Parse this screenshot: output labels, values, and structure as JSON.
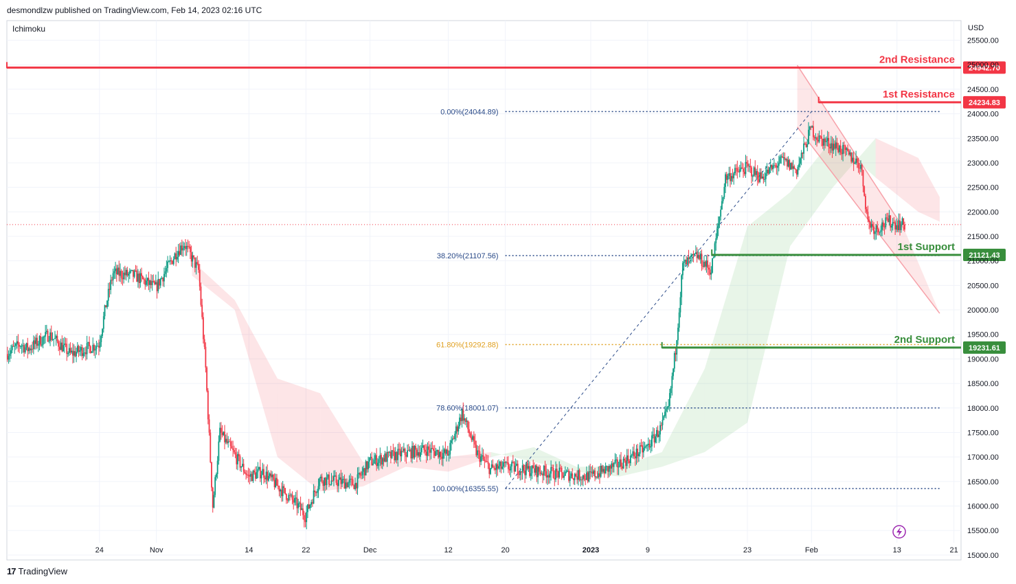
{
  "header": {
    "published_by": "desmondlzw published on TradingView.com, Feb 14, 2023 02:16 UTC"
  },
  "footer": {
    "brand": "TradingView",
    "logo_glyph": "17"
  },
  "chart_data": {
    "type": "candlestick",
    "indicator_label": "Ichimoku",
    "currency": "USD",
    "ylim": [
      14900,
      25900
    ],
    "y_ticks": [
      15000,
      15500,
      16000,
      16500,
      17000,
      17500,
      18000,
      18500,
      19000,
      19500,
      20000,
      20500,
      21000,
      21500,
      22000,
      22500,
      23000,
      23500,
      24000,
      24500,
      25000,
      25500
    ],
    "y_tick_labels": [
      "15000.00",
      "15500.00",
      "16000.00",
      "16500.00",
      "17000.00",
      "17500.00",
      "18000.00",
      "18500.00",
      "19000.00",
      "19500.00",
      "20000.00",
      "20500.00",
      "21000.00",
      "21500.00",
      "22000.00",
      "22500.00",
      "23000.00",
      "23500.00",
      "24000.00",
      "24500.00",
      "25000.00",
      "25500.00"
    ],
    "x_start_date": "2022-10-11",
    "x_end_date": "2023-02-22",
    "x_ticks": [
      {
        "date": "2022-10-24",
        "label": "24"
      },
      {
        "date": "2022-11-01",
        "label": "Nov"
      },
      {
        "date": "2022-11-14",
        "label": "14"
      },
      {
        "date": "2022-11-22",
        "label": "22"
      },
      {
        "date": "2022-12-01",
        "label": "Dec"
      },
      {
        "date": "2022-12-12",
        "label": "12"
      },
      {
        "date": "2022-12-20",
        "label": "20"
      },
      {
        "date": "2023-01-01",
        "label": "2023"
      },
      {
        "date": "2023-01-09",
        "label": "9"
      },
      {
        "date": "2023-01-23",
        "label": "23"
      },
      {
        "date": "2023-02-01",
        "label": "Feb"
      },
      {
        "date": "2023-02-13",
        "label": "13"
      },
      {
        "date": "2023-02-21",
        "label": "21"
      }
    ],
    "levels": [
      {
        "name": "2nd Resistance",
        "value": 24942.7,
        "label": "24942.70",
        "color": "#f23645",
        "start_date": "2022-10-11"
      },
      {
        "name": "1st Resistance",
        "value": 24234.83,
        "label": "24234.83",
        "color": "#f23645",
        "start_date": "2023-02-02"
      },
      {
        "name": "1st Support",
        "value": 21121.43,
        "label": "21121.43",
        "color": "#388e3c",
        "start_date": "2023-01-18"
      },
      {
        "name": "2nd Support",
        "value": 19231.61,
        "label": "19231.61",
        "color": "#388e3c",
        "start_date": "2023-01-11"
      }
    ],
    "fib_levels": [
      {
        "label": "0.00%(24044.89)",
        "value": 24044.89,
        "color": "#2a4a88"
      },
      {
        "label": "38.20%(21107.56)",
        "value": 21107.56,
        "color": "#2a4a88"
      },
      {
        "label": "61.80%(19292.88)",
        "value": 19292.88,
        "color": "#e0a020"
      },
      {
        "label": "78.60%(18001.07)",
        "value": 18001.07,
        "color": "#2a4a88"
      },
      {
        "label": "100.00%(16355.55)",
        "value": 16355.55,
        "color": "#2a4a88"
      }
    ],
    "fib_start_date": "2022-12-20",
    "current_price": 21740,
    "channel": {
      "upper": [
        {
          "date": "2023-01-30",
          "value": 24990
        },
        {
          "date": "2023-02-14",
          "value": 21650
        }
      ],
      "lower": [
        {
          "date": "2023-01-30",
          "value": 23730
        },
        {
          "date": "2023-02-19",
          "value": 19930
        }
      ]
    },
    "trend_line": [
      {
        "date": "2022-12-20",
        "value": 16355.55
      },
      {
        "date": "2023-02-01",
        "value": 24044.89
      }
    ],
    "price_path": [
      {
        "date": "2022-10-11",
        "value": 19100
      },
      {
        "date": "2022-10-13",
        "value": 19300
      },
      {
        "date": "2022-10-14",
        "value": 19200
      },
      {
        "date": "2022-10-17",
        "value": 19500
      },
      {
        "date": "2022-10-20",
        "value": 19100
      },
      {
        "date": "2022-10-24",
        "value": 19300
      },
      {
        "date": "2022-10-25",
        "value": 20100
      },
      {
        "date": "2022-10-26",
        "value": 20750
      },
      {
        "date": "2022-10-29",
        "value": 20700
      },
      {
        "date": "2022-11-01",
        "value": 20450
      },
      {
        "date": "2022-11-04",
        "value": 21200
      },
      {
        "date": "2022-11-05",
        "value": 21350
      },
      {
        "date": "2022-11-07",
        "value": 20800
      },
      {
        "date": "2022-11-08",
        "value": 18800
      },
      {
        "date": "2022-11-09",
        "value": 16000
      },
      {
        "date": "2022-11-10",
        "value": 17500
      },
      {
        "date": "2022-11-14",
        "value": 16600
      },
      {
        "date": "2022-11-16",
        "value": 16700
      },
      {
        "date": "2022-11-21",
        "value": 16000
      },
      {
        "date": "2022-11-22",
        "value": 15800
      },
      {
        "date": "2022-11-24",
        "value": 16550
      },
      {
        "date": "2022-11-29",
        "value": 16450
      },
      {
        "date": "2022-12-01",
        "value": 16900
      },
      {
        "date": "2022-12-05",
        "value": 17050
      },
      {
        "date": "2022-12-09",
        "value": 17150
      },
      {
        "date": "2022-12-12",
        "value": 17050
      },
      {
        "date": "2022-12-14",
        "value": 17900
      },
      {
        "date": "2022-12-16",
        "value": 17100
      },
      {
        "date": "2022-12-18",
        "value": 16750
      },
      {
        "date": "2022-12-20",
        "value": 16800
      },
      {
        "date": "2022-12-28",
        "value": 16650
      },
      {
        "date": "2023-01-01",
        "value": 16600
      },
      {
        "date": "2023-01-05",
        "value": 16850
      },
      {
        "date": "2023-01-09",
        "value": 17200
      },
      {
        "date": "2023-01-11",
        "value": 17600
      },
      {
        "date": "2023-01-12",
        "value": 18000
      },
      {
        "date": "2023-01-13",
        "value": 19200
      },
      {
        "date": "2023-01-14",
        "value": 20900
      },
      {
        "date": "2023-01-16",
        "value": 21100
      },
      {
        "date": "2023-01-18",
        "value": 20800
      },
      {
        "date": "2023-01-20",
        "value": 22700
      },
      {
        "date": "2023-01-23",
        "value": 22900
      },
      {
        "date": "2023-01-25",
        "value": 22700
      },
      {
        "date": "2023-01-28",
        "value": 23050
      },
      {
        "date": "2023-01-30",
        "value": 22850
      },
      {
        "date": "2023-02-01",
        "value": 23700
      },
      {
        "date": "2023-02-02",
        "value": 23500
      },
      {
        "date": "2023-02-05",
        "value": 23300
      },
      {
        "date": "2023-02-08",
        "value": 22950
      },
      {
        "date": "2023-02-09",
        "value": 21800
      },
      {
        "date": "2023-02-10",
        "value": 21650
      },
      {
        "date": "2023-02-12",
        "value": 21800
      },
      {
        "date": "2023-02-13",
        "value": 21750
      },
      {
        "date": "2023-02-14",
        "value": 21740
      }
    ],
    "cloud": [
      {
        "date": "2022-11-06",
        "a": 20700,
        "b": 21000
      },
      {
        "date": "2022-11-12",
        "a": 20000,
        "b": 20200
      },
      {
        "date": "2022-11-18",
        "a": 17000,
        "b": 18600
      },
      {
        "date": "2022-11-24",
        "a": 16300,
        "b": 18300
      },
      {
        "date": "2022-11-30",
        "a": 16400,
        "b": 16900
      },
      {
        "date": "2022-12-06",
        "a": 16800,
        "b": 16900
      },
      {
        "date": "2022-12-12",
        "a": 16700,
        "b": 17000
      },
      {
        "date": "2022-12-18",
        "a": 17000,
        "b": 17100
      },
      {
        "date": "2022-12-24",
        "a": 17200,
        "b": 16900
      },
      {
        "date": "2022-12-30",
        "a": 16800,
        "b": 16700
      },
      {
        "date": "2023-01-05",
        "a": 16800,
        "b": 16600
      },
      {
        "date": "2023-01-11",
        "a": 17100,
        "b": 16800
      },
      {
        "date": "2023-01-17",
        "a": 18800,
        "b": 17100
      },
      {
        "date": "2023-01-23",
        "a": 21700,
        "b": 17700
      },
      {
        "date": "2023-01-29",
        "a": 22400,
        "b": 21300
      },
      {
        "date": "2023-02-04",
        "a": 23500,
        "b": 22500
      },
      {
        "date": "2023-02-10",
        "a": 22700,
        "b": 23500
      },
      {
        "date": "2023-02-16",
        "a": 22000,
        "b": 23100
      },
      {
        "date": "2023-02-19",
        "a": 21800,
        "b": 22300
      }
    ]
  }
}
